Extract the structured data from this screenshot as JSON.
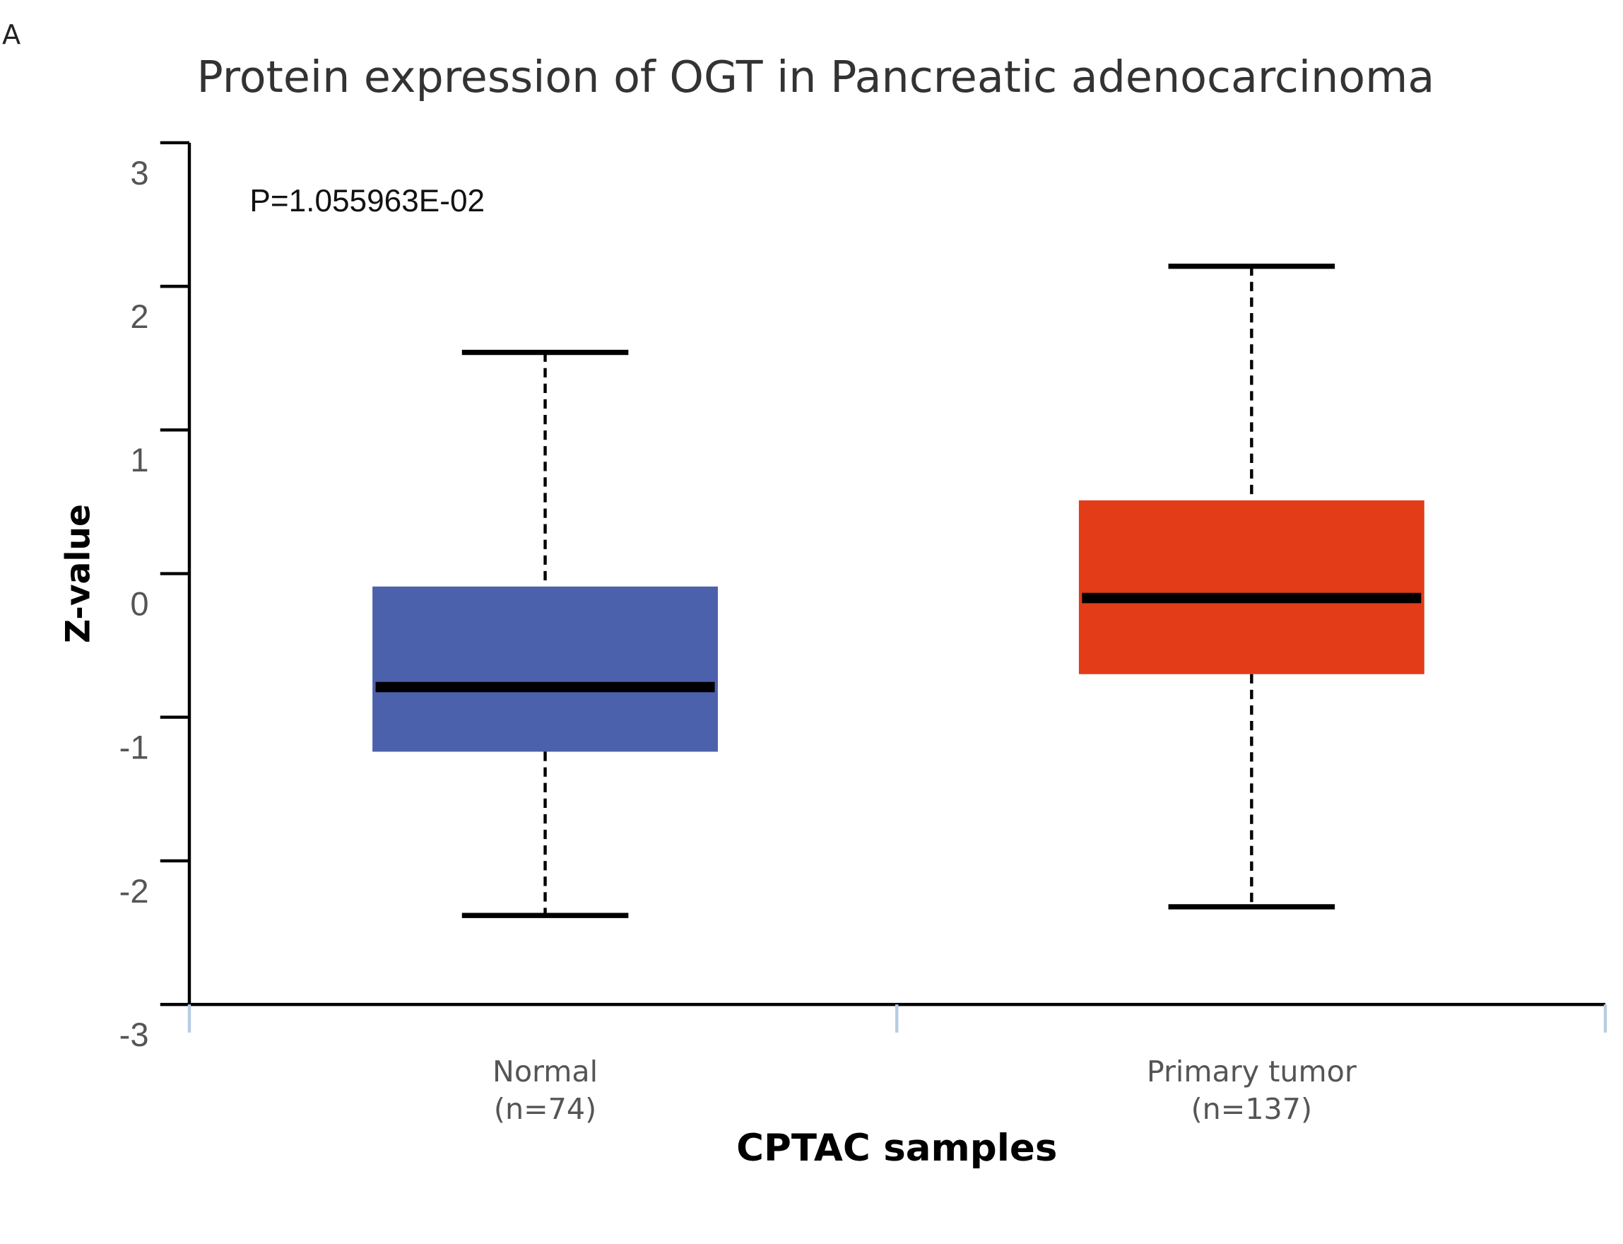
{
  "panel_label": "A",
  "chart_data": {
    "type": "box",
    "title": "Protein expression of OGT in Pancreatic adenocarcinoma",
    "xlabel": "CPTAC samples",
    "ylabel": "Z-value",
    "ylim": [
      -3,
      3
    ],
    "yticks": [
      "3",
      "2",
      "1",
      "0",
      "-1",
      "-2",
      "-3"
    ],
    "annotation": "P=1.055963E-02",
    "grid": false,
    "groups": [
      {
        "name": "Normal",
        "n_label": "(n=74)",
        "color": "#4c61ac",
        "whisker_high": 1.54,
        "q3": -0.09,
        "median": -0.79,
        "q1": -1.24,
        "whisker_low": -2.38
      },
      {
        "name": "Primary tumor",
        "n_label": "(n=137)",
        "color": "#e23c19",
        "whisker_high": 2.14,
        "q3": 0.51,
        "median": -0.17,
        "q1": -0.7,
        "whisker_low": -2.32
      }
    ]
  }
}
